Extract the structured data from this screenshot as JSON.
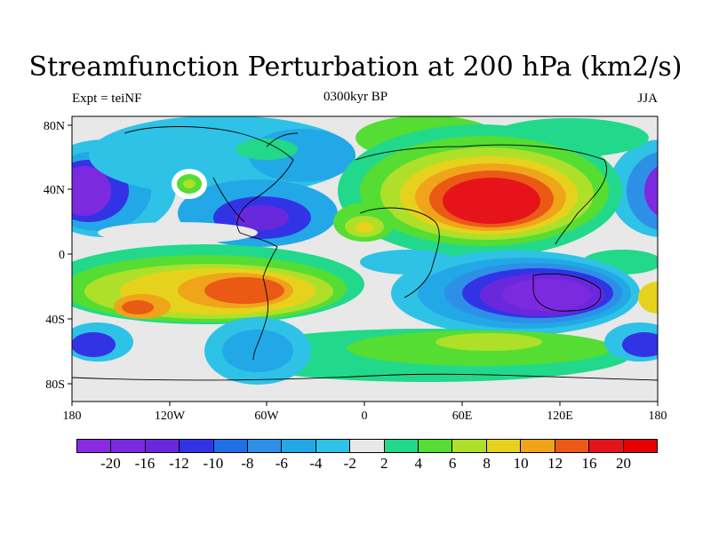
{
  "title": "Streamfunction Perturbation at 200 hPa (km2/s)",
  "subtitle_left": "Expt = teiNF",
  "subtitle_center": "0300kyr BP",
  "subtitle_right": "JJA",
  "lat_labels": [
    "80N",
    "40N",
    "0",
    "40S",
    "80S"
  ],
  "lon_labels": [
    "180",
    "120W",
    "60W",
    "0",
    "60E",
    "120E",
    "180"
  ],
  "colorbar": {
    "labels": [
      "-20",
      "-16",
      "-12",
      "-10",
      "-8",
      "-6",
      "-4",
      "-2",
      "2",
      "4",
      "6",
      "8",
      "10",
      "12",
      "16",
      "20"
    ],
    "colors": [
      "#8a2be2",
      "#7b2ae0",
      "#6a28dc",
      "#3333e6",
      "#1f6fe6",
      "#2e8fe6",
      "#22a8e6",
      "#2ec2e6",
      "#e8e8e8",
      "#22d88a",
      "#55dd33",
      "#aee029",
      "#e6d21c",
      "#f0a41a",
      "#ea5a14",
      "#e6141a",
      "#e60000"
    ]
  },
  "map": {
    "background_color": "#e8e8e8",
    "projection": "cylindrical-equidistant"
  }
}
